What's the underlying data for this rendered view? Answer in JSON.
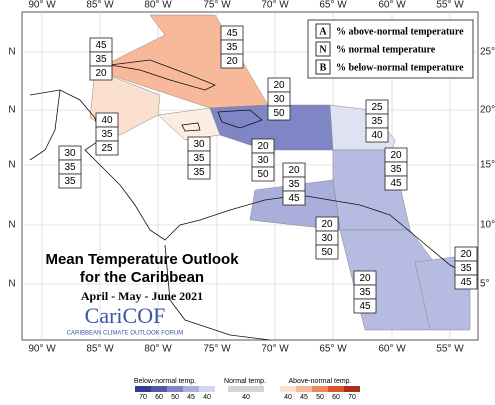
{
  "title_lines": [
    "Mean Temperature Outlook",
    "for the Caribbean"
  ],
  "period": "April - May - June 2021",
  "logo": {
    "name": "CariCOF",
    "subtitle": "CARIBBEAN CLIMATE OUTLOOK FORUM"
  },
  "legend": [
    {
      "key": "A",
      "text": "% above-normal temperature"
    },
    {
      "key": "N",
      "text": "% normal temperature"
    },
    {
      "key": "B",
      "text": "% below-normal temperature"
    }
  ],
  "longitude_labels": [
    "90° W",
    "85° W",
    "80° W",
    "75° W",
    "70° W",
    "65° W",
    "60° W",
    "55° W"
  ],
  "latitude_labels_right": [
    "25°",
    "20°",
    "15°",
    "10°",
    "5°"
  ],
  "latitude_labels_left": [
    "N",
    "N",
    "N",
    "N",
    "N"
  ],
  "zones": [
    [
      45,
      35,
      20
    ],
    [
      45,
      35,
      20
    ],
    [
      40,
      35,
      25
    ],
    [
      30,
      35,
      35
    ],
    [
      30,
      35,
      35
    ],
    [
      20,
      30,
      50
    ],
    [
      25,
      35,
      40
    ],
    [
      20,
      35,
      45
    ],
    [
      20,
      35,
      45
    ],
    [
      20,
      30,
      50
    ],
    [
      20,
      30,
      50
    ],
    [
      20,
      35,
      45
    ],
    [
      20,
      35,
      45
    ]
  ],
  "colorbar": {
    "below_label": "Below-normal temp.",
    "below_ticks": [
      70,
      60,
      50,
      45,
      40
    ],
    "normal_label": "Normal temp.",
    "normal_ticks": [
      40
    ],
    "above_label": "Above-normal temp.",
    "above_ticks": [
      40,
      45,
      50,
      60,
      70
    ]
  }
}
